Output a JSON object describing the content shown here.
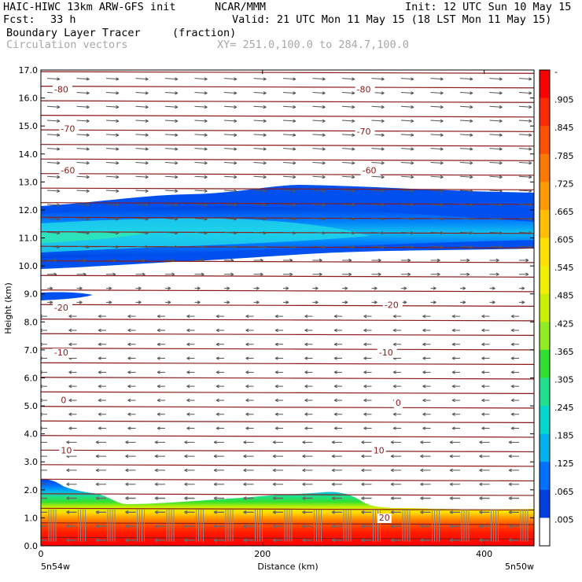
{
  "header": {
    "model": "HAIC-HIWC 13km ARW-GFS init",
    "org": "NCAR/MMM",
    "init": "Init: 12 UTC Sun 10 May 15",
    "fcst_label": "Fcst:",
    "fcst_value": "33 h",
    "valid": "Valid: 21 UTC Mon 11 May 15 (18 LST Mon 11 May 15)",
    "field_name": "Boundary Layer Tracer",
    "field_units": "(fraction)",
    "overlay": "Circulation vectors",
    "xy_range": "XY= 251.0,100.0 to 284.7,100.0"
  },
  "chart_data": {
    "type": "heatmap",
    "title": "Boundary Layer Tracer",
    "units": "(fraction)",
    "xlabel": "Distance (km)",
    "ylabel": "Height (km)",
    "xlim": [
      0,
      445
    ],
    "ylim": [
      0,
      17
    ],
    "x_ticks": [
      0,
      200,
      400
    ],
    "y_ticks": [
      "0.0",
      "1.0",
      "2.0",
      "3.0",
      "4.0",
      "5.0",
      "6.0",
      "7.0",
      "8.0",
      "9.0",
      "10.0",
      "11.0",
      "12.0",
      "13.0",
      "14.0",
      "15.0",
      "16.0",
      "17.0"
    ],
    "x_endpoints": [
      "5n54w",
      "5n50w"
    ],
    "colorbar_labels": [
      "-",
      ".905",
      ".845",
      ".785",
      ".725",
      ".665",
      ".605",
      ".545",
      ".485",
      ".425",
      ".365",
      ".305",
      ".245",
      ".185",
      ".125",
      ".065",
      ".005"
    ],
    "colorbar_colors": [
      "#ff0000",
      "#ff2a00",
      "#ff5000",
      "#ff7800",
      "#ff9a00",
      "#ffbe00",
      "#ffe000",
      "#f0f000",
      "#c8f000",
      "#90ee20",
      "#30e030",
      "#20e090",
      "#00d8d0",
      "#00b0f0",
      "#0070ff",
      "#0040e0",
      "#ffffff"
    ],
    "contour_labels": [
      {
        "x": 12,
        "y": 16.2,
        "text": "-80"
      },
      {
        "x": 285,
        "y": 16.2,
        "text": "-80"
      },
      {
        "x": 18,
        "y": 14.8,
        "text": "-70"
      },
      {
        "x": 285,
        "y": 14.7,
        "text": "-70"
      },
      {
        "x": 18,
        "y": 13.3,
        "text": "-60"
      },
      {
        "x": 290,
        "y": 13.3,
        "text": "-60"
      },
      {
        "x": 12,
        "y": 8.4,
        "text": "-20"
      },
      {
        "x": 310,
        "y": 8.5,
        "text": "-20"
      },
      {
        "x": 12,
        "y": 6.8,
        "text": "-10"
      },
      {
        "x": 305,
        "y": 6.8,
        "text": "-10"
      },
      {
        "x": 18,
        "y": 5.1,
        "text": "0"
      },
      {
        "x": 320,
        "y": 5.0,
        "text": "0"
      },
      {
        "x": 18,
        "y": 3.3,
        "text": "10"
      },
      {
        "x": 300,
        "y": 3.3,
        "text": "10"
      },
      {
        "x": 305,
        "y": 0.9,
        "text": "20"
      }
    ]
  }
}
